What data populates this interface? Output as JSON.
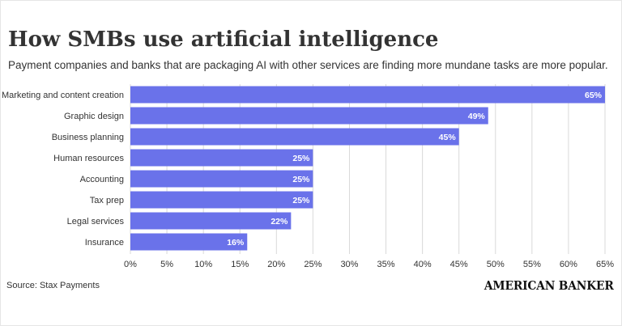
{
  "title": "How SMBs use artificial intelligence",
  "subtitle": "Payment companies and banks that are packaging AI with other services are finding more mundane tasks are more popular.",
  "source": "Source: Stax Payments",
  "brand": "AMERICAN BANKER",
  "colors": {
    "bar": "#6a72ea",
    "grid": "#d9d9d9",
    "label_text": "#ffffff"
  },
  "chart_data": {
    "type": "bar",
    "orientation": "horizontal",
    "categories": [
      "Marketing and content creation",
      "Graphic design",
      "Business planning",
      "Human resources",
      "Accounting",
      "Tax prep",
      "Legal services",
      "Insurance"
    ],
    "values": [
      65,
      49,
      45,
      25,
      25,
      25,
      22,
      16
    ],
    "value_labels": [
      "65%",
      "49%",
      "45%",
      "25%",
      "25%",
      "25%",
      "22%",
      "16%"
    ],
    "xlim": [
      0,
      65
    ],
    "x_ticks": [
      0,
      5,
      10,
      15,
      20,
      25,
      30,
      35,
      40,
      45,
      50,
      55,
      60,
      65
    ],
    "x_tick_labels": [
      "0%",
      "5%",
      "10%",
      "15%",
      "20%",
      "25%",
      "30%",
      "35%",
      "40%",
      "45%",
      "50%",
      "55%",
      "60%",
      "65%"
    ],
    "grid": true
  }
}
